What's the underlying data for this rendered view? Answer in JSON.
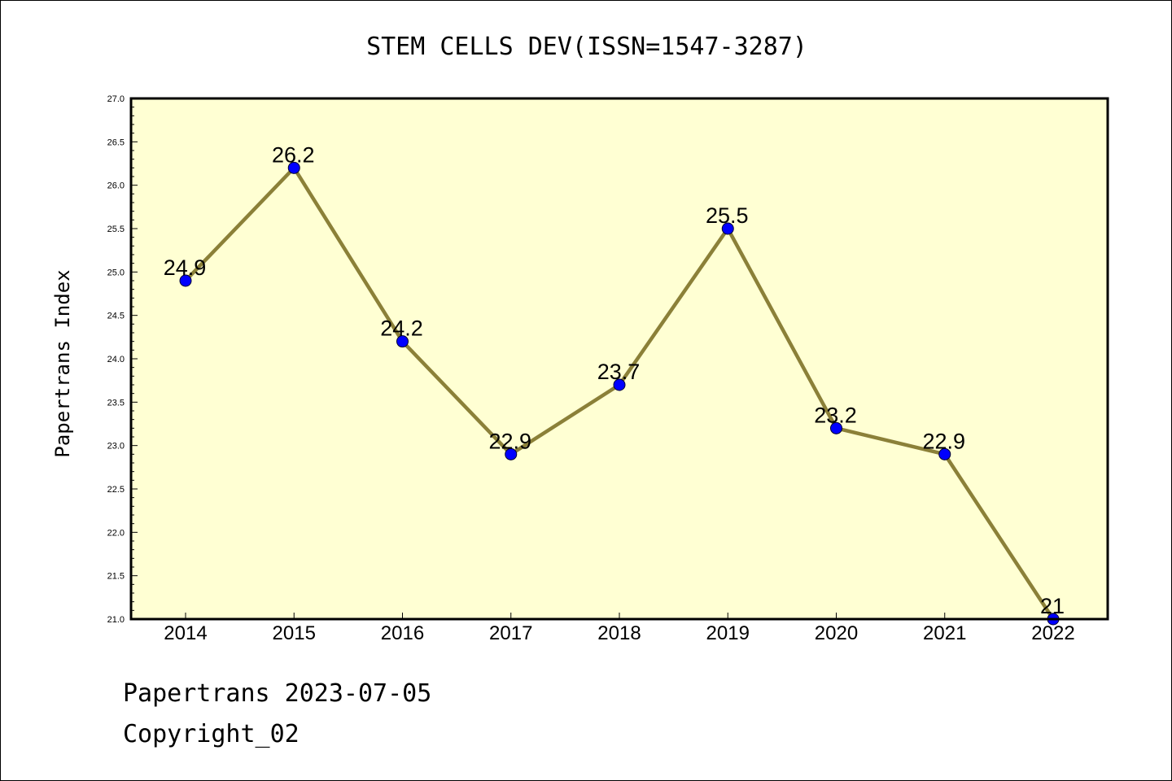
{
  "chart_data": {
    "type": "line",
    "title": "STEM CELLS DEV(ISSN=1547-3287)",
    "xlabel": "",
    "ylabel": "Papertrans Index",
    "categories": [
      "2014",
      "2015",
      "2016",
      "2017",
      "2018",
      "2019",
      "2020",
      "2021",
      "2022"
    ],
    "values": [
      24.9,
      26.2,
      24.2,
      22.9,
      23.7,
      25.5,
      23.2,
      22.9,
      21
    ],
    "data_labels": [
      "24.9",
      "26.2",
      "24.2",
      "22.9",
      "23.7",
      "25.5",
      "23.2",
      "22.9",
      "21"
    ],
    "ylim": [
      21.0,
      27.0
    ],
    "yticks": [
      "21.0",
      "21.5",
      "22.0",
      "22.5",
      "23.0",
      "23.5",
      "24.0",
      "24.5",
      "25.0",
      "25.5",
      "26.0",
      "26.5",
      "27.0"
    ],
    "grid": false,
    "legend": "none",
    "colors": {
      "plot_background": "#ffffd3",
      "line": "#8b8038",
      "marker_fill": "#0000ff",
      "marker_edge": "#000033",
      "frame": "#000000"
    }
  },
  "footer": {
    "line1": "Papertrans 2023-07-05",
    "line2": "Copyright_02"
  }
}
